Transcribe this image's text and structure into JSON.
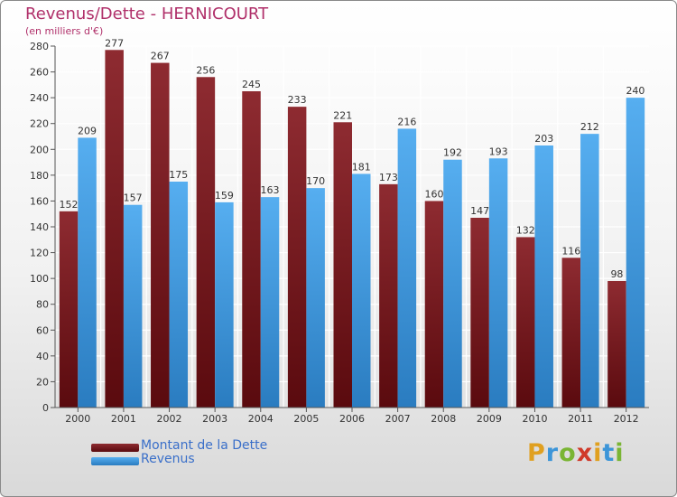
{
  "chart_data": {
    "type": "bar",
    "title": "Revenus/Dette - HERNICOURT",
    "subtitle": "(en milliers d'€)",
    "xlabel": "",
    "ylabel": "",
    "ylim": [
      0,
      280
    ],
    "yticks": [
      0,
      20,
      40,
      60,
      80,
      100,
      120,
      140,
      160,
      180,
      200,
      220,
      240,
      260,
      280
    ],
    "categories": [
      "2000",
      "2001",
      "2002",
      "2003",
      "2004",
      "2005",
      "2006",
      "2007",
      "2008",
      "2009",
      "2010",
      "2011",
      "2012"
    ],
    "series": [
      {
        "name": "Montant de la Dette",
        "color": "#7a1a1f",
        "values": [
          152,
          277,
          267,
          256,
          245,
          233,
          221,
          173,
          160,
          147,
          132,
          116,
          98
        ]
      },
      {
        "name": "Revenus",
        "color": "#3c95d8",
        "values": [
          209,
          157,
          175,
          159,
          163,
          170,
          181,
          216,
          192,
          193,
          203,
          212,
          240
        ]
      }
    ],
    "grid": true,
    "legend": "bottom-left"
  },
  "logo": {
    "text": "Proxiti",
    "letters": [
      "P",
      "r",
      "o",
      "x",
      "i",
      "t",
      "i"
    ],
    "colors": [
      "#e0a020",
      "#3c95d8",
      "#7ab534",
      "#d03a2a",
      "#e0a020",
      "#3c95d8",
      "#7ab534"
    ]
  }
}
